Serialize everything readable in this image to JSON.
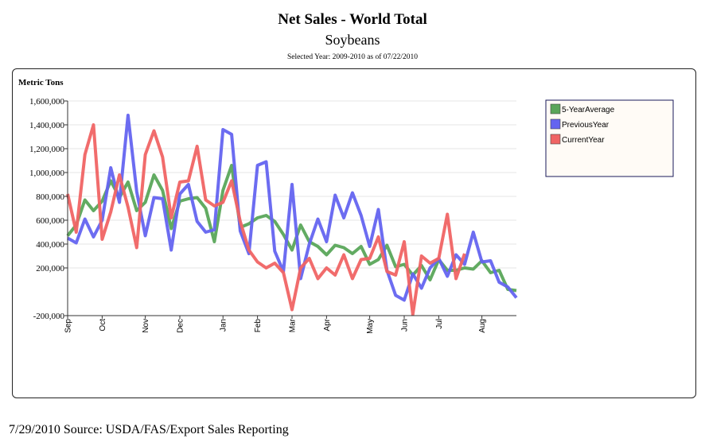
{
  "colors": {
    "five_year": "#5aa65a",
    "previous": "#6464f0",
    "current": "#f06464",
    "grid": "#e6e6e6",
    "legend_bg": "#fffbf6",
    "legend_border": "#1a1a5a"
  },
  "footer": "7/29/2010 Source: USDA/FAS/Export Sales Reporting",
  "chart_data": {
    "type": "line",
    "title": "Net Sales - World Total",
    "subtitle": "Soybeans",
    "selected_year": "Selected Year: 2009-2010 as of 07/22/2010",
    "ylabel": "Metric Tons",
    "xlabel": "",
    "ylim": [
      -200000,
      1600000
    ],
    "yticks": [
      -200000,
      200000,
      400000,
      600000,
      800000,
      1000000,
      1200000,
      1400000,
      1600000
    ],
    "ytick_labels": [
      "-200,000",
      "200,000",
      "400,000",
      "600,000",
      "800,000",
      "1,000,000",
      "1,200,000",
      "1,400,000",
      "1,600,000"
    ],
    "x": [
      1,
      2,
      3,
      4,
      5,
      6,
      7,
      8,
      9,
      10,
      11,
      12,
      13,
      14,
      15,
      16,
      17,
      18,
      19,
      20,
      21,
      22,
      23,
      24,
      25,
      26,
      27,
      28,
      29,
      30,
      31,
      32,
      33,
      34,
      35,
      36,
      37,
      38,
      39,
      40,
      41,
      42,
      43,
      44,
      45,
      46,
      47,
      48,
      49,
      50,
      51,
      52,
      53
    ],
    "months": [
      {
        "label": "Sep",
        "x": 1
      },
      {
        "label": "Oct",
        "x": 5
      },
      {
        "label": "Nov",
        "x": 10
      },
      {
        "label": "Dec",
        "x": 14
      },
      {
        "label": "Jan",
        "x": 19
      },
      {
        "label": "Feb",
        "x": 23
      },
      {
        "label": "Mar",
        "x": 27
      },
      {
        "label": "Apr",
        "x": 31
      },
      {
        "label": "May",
        "x": 36
      },
      {
        "label": "Jun",
        "x": 40
      },
      {
        "label": "Jul",
        "x": 44
      },
      {
        "label": "Aug",
        "x": 49
      }
    ],
    "legend": "top-right",
    "series": [
      {
        "name": "5-YearAverage",
        "color_key": "five_year",
        "values": [
          470000,
          560000,
          770000,
          680000,
          760000,
          930000,
          790000,
          920000,
          680000,
          750000,
          980000,
          850000,
          530000,
          760000,
          780000,
          790000,
          700000,
          420000,
          850000,
          1060000,
          540000,
          570000,
          620000,
          640000,
          590000,
          480000,
          350000,
          560000,
          420000,
          380000,
          310000,
          390000,
          370000,
          320000,
          380000,
          230000,
          270000,
          390000,
          210000,
          230000,
          140000,
          220000,
          100000,
          270000,
          180000,
          180000,
          200000,
          190000,
          260000,
          160000,
          180000,
          20000,
          10000
        ]
      },
      {
        "name": "PreviousYear",
        "color_key": "previous",
        "values": [
          450000,
          410000,
          610000,
          460000,
          600000,
          1040000,
          750000,
          1480000,
          840000,
          470000,
          790000,
          780000,
          350000,
          820000,
          900000,
          590000,
          500000,
          520000,
          1360000,
          1320000,
          510000,
          320000,
          1060000,
          1090000,
          340000,
          170000,
          900000,
          110000,
          400000,
          610000,
          420000,
          810000,
          620000,
          830000,
          640000,
          380000,
          690000,
          180000,
          -30000,
          -70000,
          150000,
          30000,
          200000,
          280000,
          130000,
          310000,
          230000,
          500000,
          250000,
          260000,
          80000,
          40000,
          -50000
        ]
      },
      {
        "name": "CurrentYear",
        "color_key": "current",
        "values": [
          820000,
          500000,
          1150000,
          1400000,
          440000,
          670000,
          980000,
          710000,
          370000,
          1150000,
          1350000,
          1130000,
          620000,
          920000,
          930000,
          1220000,
          770000,
          720000,
          750000,
          930000,
          590000,
          350000,
          250000,
          200000,
          240000,
          160000,
          -150000,
          200000,
          280000,
          110000,
          200000,
          140000,
          310000,
          110000,
          270000,
          280000,
          460000,
          170000,
          140000,
          420000,
          -190000,
          300000,
          240000,
          280000,
          650000,
          110000,
          320000,
          null,
          null,
          null,
          null,
          null,
          null
        ]
      }
    ]
  }
}
